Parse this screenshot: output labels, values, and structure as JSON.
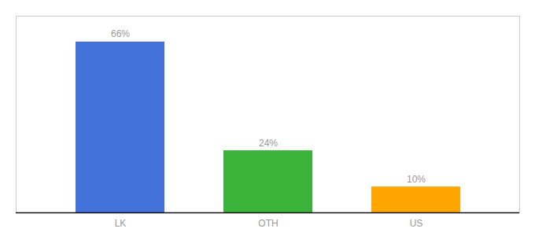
{
  "chart_data": {
    "type": "bar",
    "categories": [
      "LK",
      "OTH",
      "US"
    ],
    "values": [
      66,
      24,
      10
    ],
    "value_labels": [
      "66%",
      "24%",
      "10%"
    ],
    "data_labels": true,
    "colors": [
      "#4472DB",
      "#3BB33B",
      "#FFA500"
    ],
    "ylim": [
      0,
      76
    ],
    "tick_labels": "x",
    "grid": false
  }
}
